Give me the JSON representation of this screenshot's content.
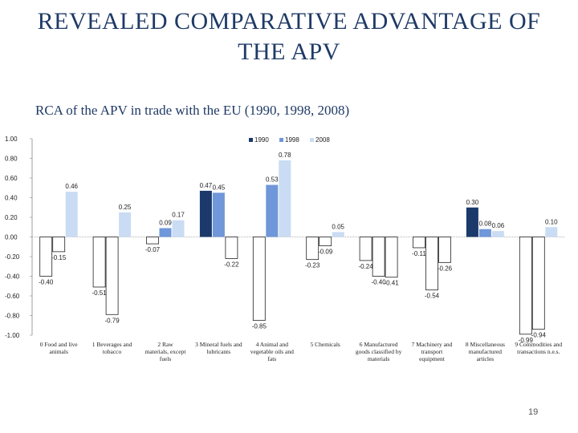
{
  "slide": {
    "title_line1": "REVEALED COMPARATIVE ADVANTAGE OF",
    "title_line2": "THE APV",
    "subtitle": "RCA of the APV in trade with the EU (1990, 1998, 2008)",
    "page_number": "19"
  },
  "chart_data": {
    "type": "bar",
    "title": "",
    "xlabel": "",
    "ylabel": "",
    "ylim": [
      -1.0,
      1.0
    ],
    "yticks": [
      "1.00",
      "0.80",
      "0.60",
      "0.40",
      "0.20",
      "0.00",
      "-0.20",
      "-0.40",
      "-0.60",
      "-0.80",
      "-1.00"
    ],
    "legend_position": "top-right",
    "categories": [
      [
        "0 Food and live",
        "animals"
      ],
      [
        "1 Beverages and",
        "tobacco"
      ],
      [
        "2 Raw",
        "materials, except",
        "fuels"
      ],
      [
        "3 Mineral fuels and",
        "lubricants"
      ],
      [
        "4 Animal and",
        "vegetable oils and",
        "fats"
      ],
      [
        "5 Chemicals"
      ],
      [
        "6 Manufactured",
        "goods classified by",
        "materials"
      ],
      [
        "7 Machinery and",
        "transport",
        "equipment"
      ],
      [
        "8 Miscellaneous",
        "manufactured",
        "articles"
      ],
      [
        "9 Commodities and",
        "transactions n.e.s."
      ]
    ],
    "series": [
      {
        "name": "1990",
        "color": "#1b3a6b",
        "values": [
          -0.4,
          -0.51,
          -0.07,
          0.47,
          -0.85,
          -0.23,
          -0.24,
          -0.11,
          0.3,
          -0.99
        ],
        "labels": [
          "-0.40",
          "-0.51",
          "-0.07",
          "0.47",
          "-0.85",
          "-0.23",
          "-0.24",
          "-0.11",
          "0.30",
          "-0.99"
        ]
      },
      {
        "name": "1998",
        "color": "#6f97d9",
        "values": [
          -0.15,
          -0.79,
          0.09,
          0.45,
          0.53,
          -0.09,
          -0.4,
          -0.54,
          0.08,
          -0.94
        ],
        "labels": [
          "-0.15",
          "-0.79",
          "0.09",
          "0.45",
          "0.53",
          "-0.09",
          "-0.40",
          "-0.54",
          "0.08",
          "-0.94"
        ]
      },
      {
        "name": "2008",
        "color": "#c9dcf3",
        "values": [
          0.46,
          0.25,
          0.17,
          -0.22,
          0.78,
          0.05,
          -0.41,
          -0.26,
          0.06,
          0.1
        ],
        "labels": [
          "0.46",
          "0.25",
          "0.17",
          "-0.22",
          "0.78",
          "0.05",
          "-0.41",
          "-0.26",
          "0.06",
          "0.10"
        ]
      }
    ]
  }
}
